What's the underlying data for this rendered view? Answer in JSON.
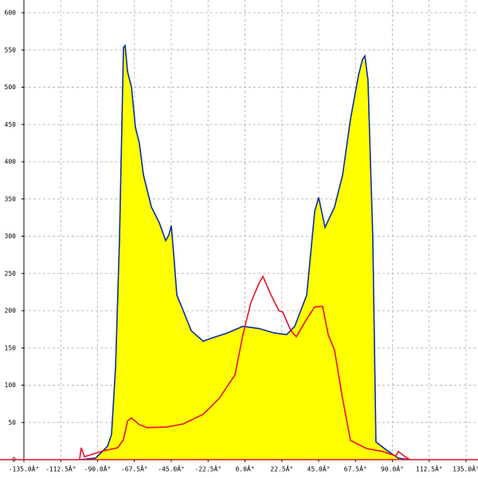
{
  "chart_data": {
    "type": "area-line",
    "xlim": [
      -135,
      135
    ],
    "xticks": [
      {
        "value": -135,
        "label": "-135.0Â°"
      },
      {
        "value": -112.5,
        "label": "-112.5Â°"
      },
      {
        "value": -90,
        "label": "-90.0Â°"
      },
      {
        "value": -67.5,
        "label": "-67.5Â°"
      },
      {
        "value": -45,
        "label": "-45.0Â°"
      },
      {
        "value": -22.5,
        "label": "-22.5Â°"
      },
      {
        "value": 0,
        "label": "0.0Â°"
      },
      {
        "value": 22.5,
        "label": "22.5Â°"
      },
      {
        "value": 45,
        "label": "45.0Â°"
      },
      {
        "value": 67.5,
        "label": "67.5Â°"
      },
      {
        "value": 90,
        "label": "90.0Â°"
      },
      {
        "value": 112.5,
        "label": "112.5Â°"
      },
      {
        "value": 135,
        "label": "135.0Â°"
      }
    ],
    "ylim": [
      0,
      600
    ],
    "yticks": [
      0,
      50,
      100,
      150,
      200,
      250,
      300,
      350,
      400,
      450,
      500,
      550,
      600
    ],
    "grid": true,
    "series": [
      {
        "color": "#0a2aa8",
        "fill": "#ffff00",
        "x": [
          -101,
          -91.2,
          -83.9,
          -81.5,
          -79,
          -76.6,
          -74.2,
          -73.2,
          -71.7,
          -69.3,
          -66.9,
          -64.5,
          -62,
          -57.1,
          -52.3,
          -48.4,
          -46.4,
          -45,
          -43.5,
          -41.6,
          -37.7,
          -32.8,
          -25.5,
          -20.7,
          -11,
          -1.2,
          8.6,
          18.2,
          25.5,
          30.4,
          37.7,
          42.6,
          45,
          48.9,
          54.7,
          59.6,
          64.4,
          69.3,
          71.7,
          73.2,
          75.1,
          78.1,
          80,
          86.3,
          93.6,
          100.9
        ],
        "values": [
          0,
          2,
          18,
          34,
          125,
          296,
          553,
          556,
          521,
          500,
          446,
          425,
          382,
          339,
          318,
          294,
          302,
          314,
          275,
          221,
          200,
          173,
          159,
          163,
          170,
          179,
          176,
          170,
          168,
          179,
          221,
          334,
          352,
          312,
          339,
          382,
          457,
          516,
          537,
          542,
          510,
          296,
          24,
          13,
          2,
          0
        ]
      },
      {
        "color": "#e8102a",
        "x": [
          -101,
          -100,
          -98,
          -93.6,
          -86.3,
          -77.7,
          -74.2,
          -71.7,
          -69.3,
          -64.5,
          -59.6,
          -47.4,
          -37.7,
          -25.5,
          -15.8,
          -6.1,
          -1.2,
          3.6,
          8.6,
          11,
          15.9,
          20.7,
          23.1,
          28,
          31.4,
          37.7,
          42.6,
          47.4,
          50.8,
          54.7,
          59.6,
          64.4,
          74.2,
          83.9,
          92.2,
          93.6,
          98.4,
          100.9
        ],
        "values": [
          0,
          16,
          4,
          7,
          12,
          16,
          27,
          52,
          56,
          47,
          43,
          44,
          48,
          61,
          82,
          114,
          168,
          211,
          237,
          246,
          221,
          200,
          198,
          173,
          165,
          189,
          205,
          206,
          168,
          147,
          82,
          26,
          15,
          11,
          5,
          11,
          3,
          0
        ]
      }
    ]
  }
}
